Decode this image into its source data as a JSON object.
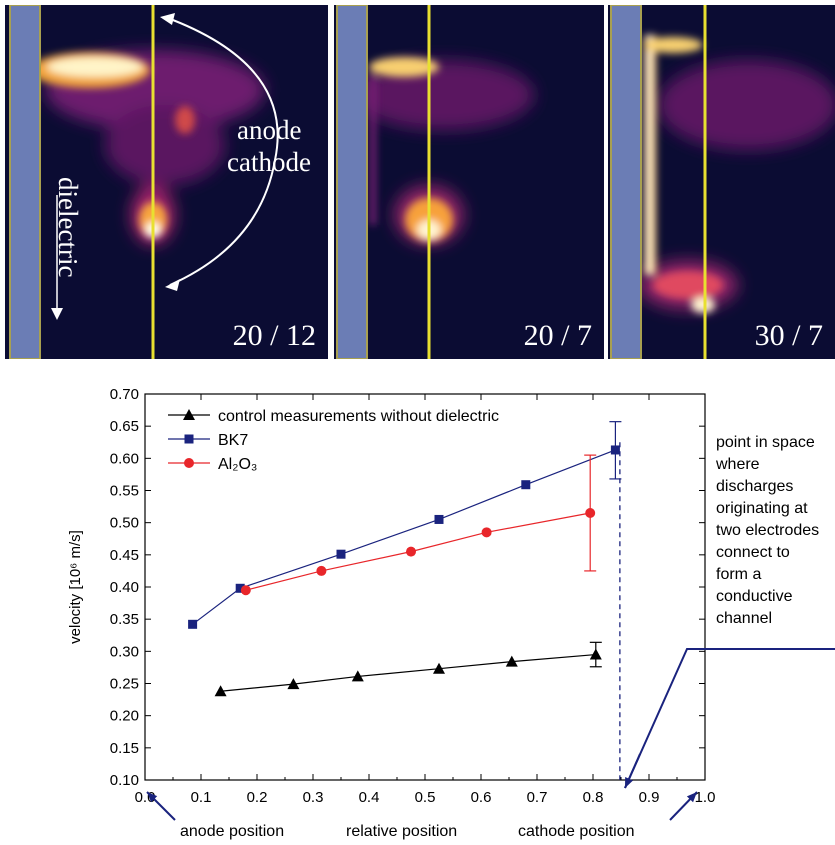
{
  "panels": [
    {
      "label": "20 / 12"
    },
    {
      "label": "20 / 7"
    },
    {
      "label": "30 / 7"
    }
  ],
  "annotations": {
    "anode": "anode",
    "cathode": "cathode",
    "dielectric": "dielectric"
  },
  "note_lines": [
    "point in space",
    "where",
    "discharges",
    "originating at",
    "two electrodes",
    "connect to",
    "form a",
    "conductive",
    "channel"
  ],
  "chart_data": {
    "type": "line",
    "xlim": [
      0.0,
      1.0
    ],
    "ylim": [
      0.1,
      0.7
    ],
    "xticks": [
      "0.0",
      "0.1",
      "0.2",
      "0.3",
      "0.4",
      "0.5",
      "0.6",
      "0.7",
      "0.8",
      "0.9",
      "1.0"
    ],
    "yticks": [
      "0.10",
      "0.15",
      "0.20",
      "0.25",
      "0.30",
      "0.35",
      "0.40",
      "0.45",
      "0.50",
      "0.55",
      "0.60",
      "0.65",
      "0.70"
    ],
    "ylabel": "velocity [10⁶ m/s]",
    "bottom_labels": [
      "anode position",
      "relative position",
      "cathode position"
    ],
    "series": [
      {
        "name": "control measurements without dielectric",
        "color": "#000000",
        "marker": "triangle",
        "x": [
          0.135,
          0.265,
          0.38,
          0.525,
          0.655,
          0.805
        ],
        "y": [
          0.238,
          0.249,
          0.261,
          0.273,
          0.284,
          0.295
        ],
        "errors": [
          {
            "x": 0.805,
            "low": 0.276,
            "high": 0.314
          }
        ]
      },
      {
        "name": "BK7",
        "color": "#1a237e",
        "marker": "square",
        "x": [
          0.085,
          0.17,
          0.35,
          0.525,
          0.68,
          0.84
        ],
        "y": [
          0.342,
          0.398,
          0.451,
          0.505,
          0.559,
          0.613
        ],
        "errors": [
          {
            "x": 0.84,
            "low": 0.568,
            "high": 0.657
          }
        ]
      },
      {
        "name": "Al₂O₃",
        "color": "#e8262a",
        "marker": "circle",
        "x": [
          0.18,
          0.315,
          0.475,
          0.61,
          0.795
        ],
        "y": [
          0.395,
          0.425,
          0.455,
          0.485,
          0.515
        ],
        "errors": [
          {
            "x": 0.795,
            "low": 0.425,
            "high": 0.605
          }
        ]
      }
    ],
    "vline_x": 0.848
  }
}
